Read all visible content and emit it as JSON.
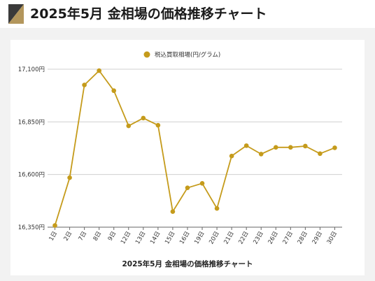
{
  "header": {
    "title": "2025年5月 金相場の価格推移チャート"
  },
  "colors": {
    "series": "#c59b1b",
    "logo_dark": "#3a3a3a",
    "logo_gold": "#b3965c"
  },
  "chart_data": {
    "type": "line",
    "title": "2025年5月 金相場の価格推移チャート",
    "legend_position": "top",
    "grid": true,
    "ylim": [
      16350,
      17100
    ],
    "y_ticks": [
      16350,
      16600,
      16850,
      17100
    ],
    "y_tick_labels": [
      "16,350円",
      "16,600円",
      "16,850円",
      "17,100円"
    ],
    "categories": [
      "1日",
      "2日",
      "7日",
      "8日",
      "9日",
      "12日",
      "13日",
      "14日",
      "15日",
      "16日",
      "19日",
      "20日",
      "21日",
      "22日",
      "23日",
      "26日",
      "27日",
      "28日",
      "29日",
      "30日"
    ],
    "series": [
      {
        "name": "税込買取相場(円/グラム)",
        "values": [
          16358,
          16585,
          17025,
          17093,
          16998,
          16831,
          16868,
          16834,
          16424,
          16537,
          16558,
          16439,
          16688,
          16737,
          16697,
          16729,
          16729,
          16735,
          16699,
          16727
        ]
      }
    ]
  }
}
